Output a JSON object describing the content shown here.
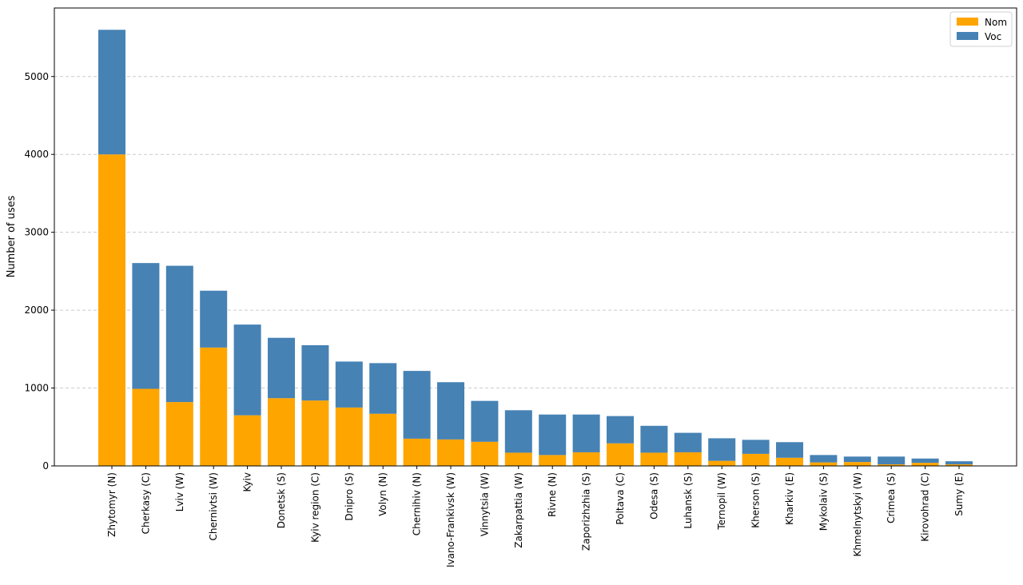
{
  "chart_data": {
    "type": "bar",
    "stacked": true,
    "title": "",
    "xlabel": "",
    "ylabel": "Number of uses",
    "ylim": [
      0,
      5880
    ],
    "yticks": [
      0,
      1000,
      2000,
      3000,
      4000,
      5000
    ],
    "grid": "horizontal-dashed",
    "legend_position": "top-right",
    "categories": [
      "Zhytomyr (N)",
      "Cherkasy (C)",
      "Lviv (W)",
      "Chernivtsi (W)",
      "Kyiv",
      "Donetsk (S)",
      "Kyiv region (C)",
      "Dnipro (S)",
      "Volyn (N)",
      "Chernihiv (N)",
      "Ivano-Frankivsk (W)",
      "Vinnytsia (W)",
      "Zakarpattia (W)",
      "Rivne (N)",
      "Zaporizhzhia (S)",
      "Poltava (C)",
      "Odesa (S)",
      "Luhansk (S)",
      "Ternopil (W)",
      "Kherson (S)",
      "Kharkiv (E)",
      "Mykolaiv (S)",
      "Khmelnytskyi (W)",
      "Crimea (S)",
      "Kirovohrad (C)",
      "Sumy (E)"
    ],
    "series": [
      {
        "name": "Nom",
        "color": "#ffa500",
        "values": [
          4000,
          990,
          820,
          1520,
          650,
          870,
          840,
          750,
          670,
          350,
          340,
          310,
          170,
          140,
          175,
          290,
          170,
          175,
          65,
          155,
          105,
          45,
          50,
          20,
          40,
          20
        ]
      },
      {
        "name": "Voc",
        "color": "#4682b4",
        "values": [
          1600,
          1615,
          1750,
          730,
          1165,
          775,
          710,
          590,
          650,
          870,
          735,
          525,
          545,
          520,
          485,
          350,
          345,
          250,
          290,
          180,
          200,
          95,
          70,
          100,
          55,
          40
        ]
      }
    ]
  }
}
